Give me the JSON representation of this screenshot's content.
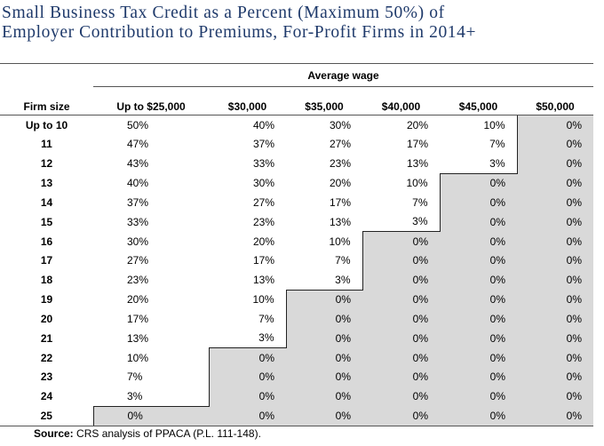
{
  "title": [
    "Small Business Tax Credit as a Percent (Maximum 50%) of",
    "Employer Contribution to Premiums, For-Profit Firms in 2014+"
  ],
  "table": {
    "group_header": "Average wage",
    "columns": [
      "Firm size",
      "Up to $25,000",
      "$30,000",
      "$35,000",
      "$40,000",
      "$45,000",
      "$50,000"
    ],
    "rows": [
      [
        "Up to 10",
        "50%",
        "40%",
        "30%",
        "20%",
        "10%",
        "0%"
      ],
      [
        "11",
        "47%",
        "37%",
        "27%",
        "17%",
        "7%",
        "0%"
      ],
      [
        "12",
        "43%",
        "33%",
        "23%",
        "13%",
        "3%",
        "0%"
      ],
      [
        "13",
        "40%",
        "30%",
        "20%",
        "10%",
        "0%",
        "0%"
      ],
      [
        "14",
        "37%",
        "27%",
        "17%",
        "7%",
        "0%",
        "0%"
      ],
      [
        "15",
        "33%",
        "23%",
        "13%",
        "3%",
        "0%",
        "0%"
      ],
      [
        "16",
        "30%",
        "20%",
        "10%",
        "0%",
        "0%",
        "0%"
      ],
      [
        "17",
        "27%",
        "17%",
        "7%",
        "0%",
        "0%",
        "0%"
      ],
      [
        "18",
        "23%",
        "13%",
        "3%",
        "0%",
        "0%",
        "0%"
      ],
      [
        "19",
        "20%",
        "10%",
        "0%",
        "0%",
        "0%",
        "0%"
      ],
      [
        "20",
        "17%",
        "7%",
        "0%",
        "0%",
        "0%",
        "0%"
      ],
      [
        "21",
        "13%",
        "3%",
        "0%",
        "0%",
        "0%",
        "0%"
      ],
      [
        "22",
        "10%",
        "0%",
        "0%",
        "0%",
        "0%",
        "0%"
      ],
      [
        "23",
        "7%",
        "0%",
        "0%",
        "0%",
        "0%",
        "0%"
      ],
      [
        "24",
        "3%",
        "0%",
        "0%",
        "0%",
        "0%",
        "0%"
      ],
      [
        "25",
        "0%",
        "0%",
        "0%",
        "0%",
        "0%",
        "0%"
      ]
    ]
  },
  "source": {
    "label": "Source:",
    "text": "CRS analysis of PPACA (P.L. 111-148)."
  }
}
